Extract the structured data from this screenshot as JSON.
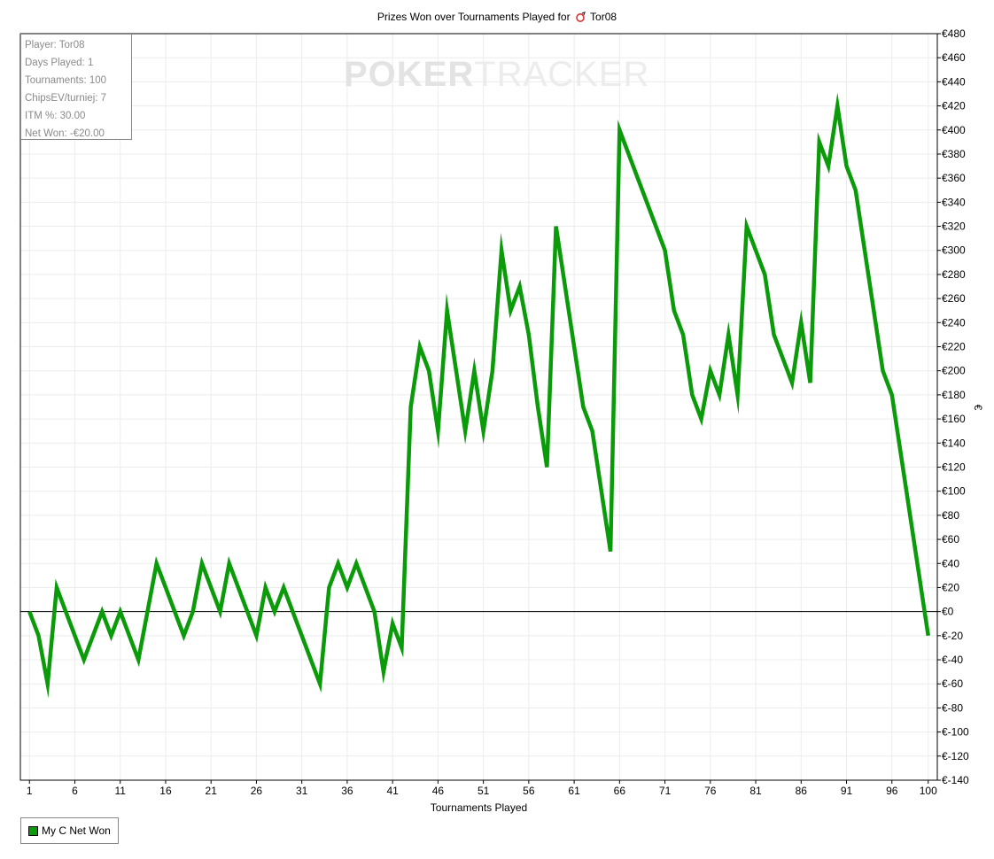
{
  "title": {
    "prefix": "Prizes Won over Tournaments Played for",
    "player": "Tor08"
  },
  "stats": {
    "player": "Player: Tor08",
    "days": "Days Played: 1",
    "tournaments": "Tournaments: 100",
    "chipsev": "ChipsEV/turniej: 7",
    "itm": "ITM %: 30.00",
    "net": "Net Won: -€20.00"
  },
  "watermark": {
    "part1": "POKER",
    "part2": "TRACKER"
  },
  "legend": {
    "label": "My C Net Won",
    "color": "#0a9a0a"
  },
  "colors": {
    "series": "#0a9a0a",
    "grid": "#ececec",
    "zero_line": "#000000"
  },
  "chart_data": {
    "type": "line",
    "title": "Prizes Won over Tournaments Played for Tor08",
    "xlabel": "Tournaments Played",
    "ylabel": "€",
    "xlim": [
      0,
      101
    ],
    "ylim": [
      -140,
      480
    ],
    "x_ticks": [
      1,
      6,
      11,
      16,
      21,
      26,
      31,
      36,
      41,
      46,
      51,
      56,
      61,
      66,
      71,
      76,
      81,
      86,
      91,
      96,
      100
    ],
    "y_ticks": [
      480,
      460,
      440,
      420,
      400,
      380,
      360,
      340,
      320,
      300,
      280,
      260,
      240,
      220,
      200,
      180,
      160,
      140,
      120,
      100,
      80,
      60,
      40,
      20,
      0,
      -20,
      -40,
      -60,
      -80,
      -100,
      -120,
      -140
    ],
    "y_tick_labels": [
      "€480",
      "€460",
      "€440",
      "€420",
      "€400",
      "€380",
      "€360",
      "€340",
      "€320",
      "€300",
      "€280",
      "€260",
      "€240",
      "€220",
      "€200",
      "€180",
      "€160",
      "€140",
      "€120",
      "€100",
      "€80",
      "€60",
      "€40",
      "€20",
      "€0",
      "€-20",
      "€-40",
      "€-60",
      "€-80",
      "€-100",
      "€-120",
      "€-140"
    ],
    "grid": true,
    "legend_position": "bottom-left",
    "series": [
      {
        "name": "My C Net Won",
        "x": [
          1,
          2,
          3,
          4,
          5,
          6,
          7,
          8,
          9,
          10,
          11,
          12,
          13,
          14,
          15,
          16,
          17,
          18,
          19,
          20,
          21,
          22,
          23,
          24,
          25,
          26,
          27,
          28,
          29,
          30,
          31,
          32,
          33,
          34,
          35,
          36,
          37,
          38,
          39,
          40,
          41,
          42,
          43,
          44,
          45,
          46,
          47,
          48,
          49,
          50,
          51,
          52,
          53,
          54,
          55,
          56,
          57,
          58,
          59,
          60,
          61,
          62,
          63,
          64,
          65,
          66,
          67,
          68,
          69,
          70,
          71,
          72,
          73,
          74,
          75,
          76,
          77,
          78,
          79,
          80,
          81,
          82,
          83,
          84,
          85,
          86,
          87,
          88,
          89,
          90,
          91,
          92,
          93,
          94,
          95,
          96,
          97,
          98,
          99,
          100
        ],
        "values": [
          0,
          -20,
          -60,
          20,
          0,
          -20,
          -40,
          -20,
          0,
          -20,
          0,
          -20,
          -40,
          0,
          40,
          20,
          0,
          -20,
          0,
          40,
          20,
          0,
          40,
          20,
          0,
          -20,
          20,
          0,
          20,
          0,
          -20,
          -40,
          -60,
          20,
          40,
          20,
          40,
          20,
          0,
          -50,
          -10,
          -30,
          170,
          220,
          200,
          150,
          250,
          200,
          150,
          200,
          150,
          200,
          300,
          250,
          270,
          230,
          170,
          120,
          320,
          270,
          220,
          170,
          150,
          100,
          50,
          400,
          380,
          360,
          340,
          320,
          300,
          250,
          230,
          180,
          160,
          200,
          180,
          230,
          180,
          320,
          300,
          280,
          230,
          210,
          190,
          240,
          190,
          390,
          370,
          420,
          370,
          350,
          300,
          250,
          200,
          180,
          130,
          80,
          30,
          -20
        ]
      }
    ]
  }
}
